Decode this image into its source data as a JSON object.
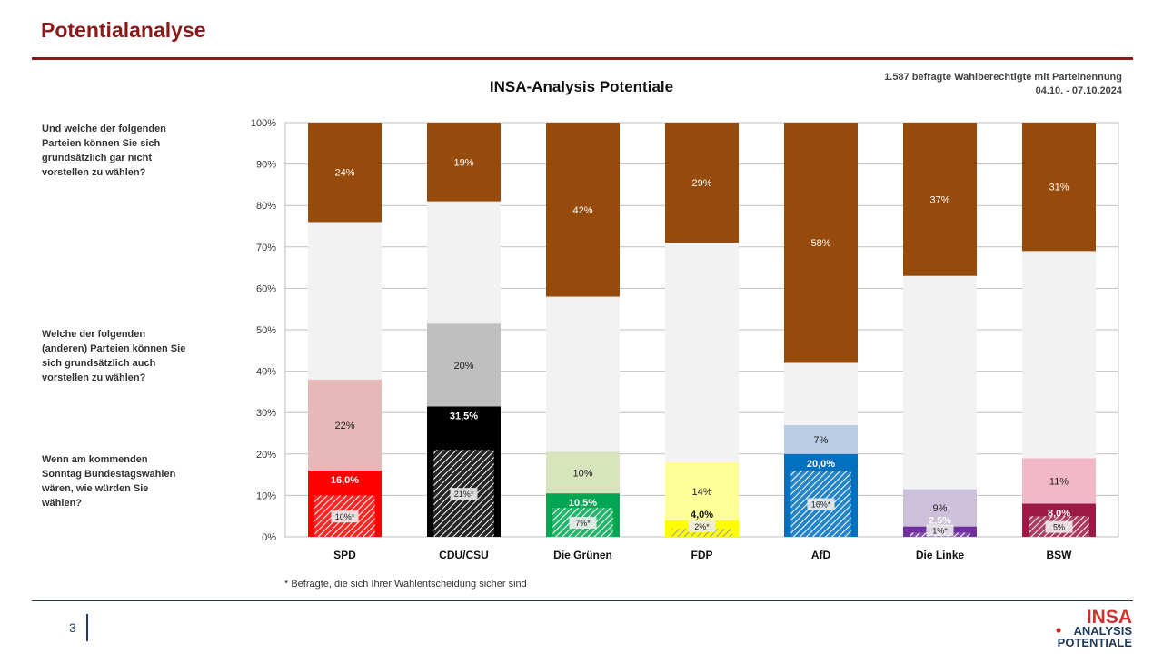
{
  "header": {
    "title": "Potentialanalyse",
    "meta_line1": "1.587 befragte Wahlberechtigte mit Parteinennung",
    "meta_line2": "04.10. - 07.10.2024"
  },
  "questions": {
    "q1": "Und welche der folgenden Parteien können Sie sich grundsätzlich gar nicht vorstellen zu wählen?",
    "q2": "Welche der folgenden (anderen) Parteien können Sie sich grundsätzlich auch vorstellen zu wählen?",
    "q3": "Wenn am kommenden Sonntag Bundestagswahlen wären, wie würden Sie wählen?"
  },
  "footnote": "* Befragte, die sich Ihrer Wahlentscheidung sicher sind",
  "page_number": "3",
  "logo": {
    "line1": "INSA",
    "line2": "ANALYSIS",
    "line3": "POTENTIALE"
  },
  "colors": {
    "accent": "#8b1a1a",
    "not_imaginable": "#964B0C",
    "gap": "#f2f2f2",
    "navy": "#1f3a5f"
  },
  "chart_data": {
    "type": "bar",
    "stacked": true,
    "title": "INSA-Analysis Potentiale",
    "ylim": [
      0,
      100
    ],
    "yticks": [
      "0%",
      "10%",
      "20%",
      "30%",
      "40%",
      "50%",
      "60%",
      "70%",
      "80%",
      "90%",
      "100%"
    ],
    "grid": true,
    "categories": [
      "SPD",
      "CDU/CSU",
      "Die Grünen",
      "FDP",
      "AfD",
      "Die Linke",
      "BSW"
    ],
    "vote": [
      16.0,
      31.5,
      10.5,
      4.0,
      20.0,
      2.5,
      8.0
    ],
    "vote_labels": [
      "16,0%",
      "31,5%",
      "10,5%",
      "4,0%",
      "20,0%",
      "2,5%",
      "8,0%"
    ],
    "certain": [
      10,
      21,
      7,
      2,
      16,
      1,
      5
    ],
    "certain_labels": [
      "10%*",
      "21%*",
      "7%*",
      "2%*",
      "16%*",
      "1%*",
      "5%"
    ],
    "potential": [
      22,
      20,
      10,
      14,
      7,
      9,
      11
    ],
    "potential_labels": [
      "22%",
      "20%",
      "10%",
      "14%",
      "7%",
      "9%",
      "11%"
    ],
    "not_imaginable": [
      24,
      19,
      42,
      29,
      58,
      37,
      31
    ],
    "not_imaginable_labels": [
      "24%",
      "19%",
      "42%",
      "29%",
      "58%",
      "37%",
      "31%"
    ],
    "party_colors": [
      "#ff0000",
      "#000000",
      "#00a651",
      "#ffff00",
      "#0070c0",
      "#7030a0",
      "#9b1b46"
    ],
    "potential_colors": [
      "#e6b8b7",
      "#bfbfbf",
      "#d8e4bc",
      "#ffff99",
      "#b8cce4",
      "#ccc0da",
      "#f2b8c8"
    ]
  }
}
